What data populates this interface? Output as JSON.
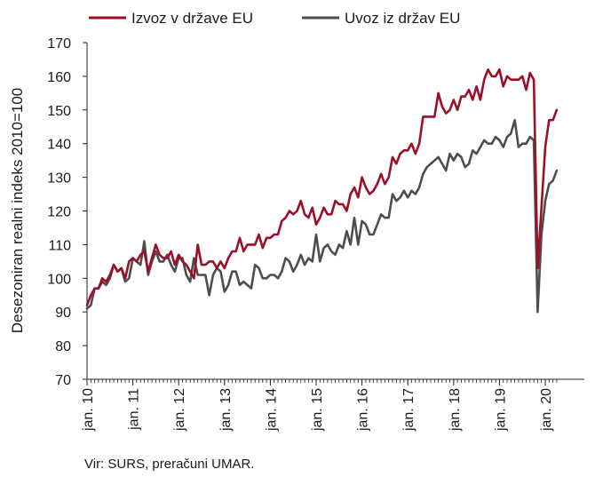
{
  "chart_data": {
    "type": "line",
    "title": "",
    "ylabel": "Desezoniran realni indeks 2010=100",
    "xlabel": "",
    "ylim": [
      70,
      170
    ],
    "yticks": [
      70,
      80,
      90,
      100,
      110,
      120,
      130,
      140,
      150,
      160,
      170
    ],
    "x_start": "2010-01",
    "x_end": "2020-10",
    "x_ticks": [
      "jan. 10",
      "jan. 11",
      "jan. 12",
      "jan. 13",
      "jan. 14",
      "jan. 15",
      "jan. 16",
      "jan. 17",
      "jan. 18",
      "jan. 19",
      "jan. 20"
    ],
    "grid": false,
    "legend_position": "top",
    "series": [
      {
        "name": "Izvoz v države EU",
        "color": "#9b1027",
        "values": [
          92,
          95,
          97,
          97,
          100,
          99,
          101,
          104,
          102,
          103,
          100,
          105,
          106,
          105,
          107,
          108,
          102,
          106,
          110,
          107,
          106,
          106,
          108,
          104,
          107,
          105,
          104,
          102,
          100,
          110,
          104,
          104,
          105,
          105,
          103,
          105,
          103,
          106,
          108,
          108,
          112,
          108,
          110,
          110,
          110,
          113,
          109,
          112,
          112,
          113,
          113,
          117,
          118,
          120,
          119,
          120,
          123,
          119,
          118,
          121,
          116,
          118,
          121,
          119,
          119,
          123,
          122,
          122,
          120,
          125,
          127,
          124,
          130,
          127,
          125,
          126,
          128,
          131,
          128,
          130,
          136,
          134,
          137,
          138,
          138,
          140,
          137,
          140,
          148,
          148,
          148,
          148,
          155,
          151,
          149,
          150,
          153,
          150,
          154,
          154,
          156,
          153,
          157,
          153,
          159,
          162,
          160,
          160,
          162,
          157,
          160,
          159,
          159,
          159,
          160,
          156,
          161,
          159,
          103,
          121,
          139,
          147,
          147,
          150
        ]
      },
      {
        "name": "Uvoz iz držav EU",
        "color": "#4d4d4d",
        "values": [
          91,
          92,
          97,
          97,
          99,
          98,
          100,
          104,
          102,
          103,
          99,
          100,
          106,
          105,
          104,
          111,
          101,
          105,
          108,
          105,
          105,
          107,
          104,
          102,
          106,
          106,
          101,
          99,
          106,
          101,
          101,
          101,
          95,
          101,
          103,
          102,
          96,
          98,
          102,
          102,
          98,
          99,
          98,
          97,
          104,
          103,
          100,
          100,
          101,
          101,
          100,
          102,
          106,
          105,
          102,
          104,
          107,
          104,
          106,
          105,
          113,
          105,
          109,
          110,
          108,
          107,
          110,
          109,
          114,
          110,
          118,
          110,
          117,
          116,
          113,
          113,
          116,
          119,
          118,
          118,
          125,
          123,
          124,
          126,
          124,
          126,
          125,
          127,
          131,
          133,
          134,
          135,
          136,
          134,
          132,
          137,
          135,
          137,
          136,
          133,
          134,
          138,
          137,
          139,
          141,
          140,
          140,
          142,
          141,
          139,
          142,
          143,
          147,
          139,
          140,
          140,
          142,
          141,
          90,
          113,
          123,
          128,
          129,
          132
        ]
      }
    ]
  },
  "source": "Vir: SURS, preračuni UMAR."
}
